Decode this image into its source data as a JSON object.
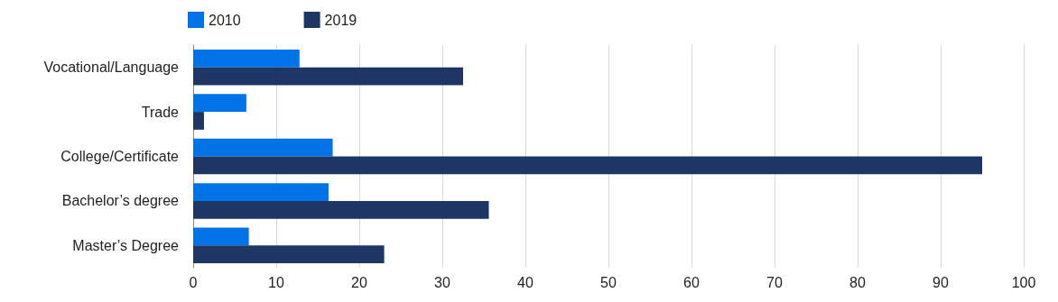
{
  "chart_data": {
    "type": "bar",
    "orientation": "horizontal",
    "categories": [
      "Vocational/Language",
      "Trade",
      "College/Certificate",
      "Bachelor’s degree",
      "Master’s Degree"
    ],
    "series": [
      {
        "name": "2010",
        "color": "#0073e6",
        "values": [
          12.8,
          6.4,
          16.8,
          16.3,
          6.7
        ]
      },
      {
        "name": "2019",
        "color": "#1d3663",
        "values": [
          32.5,
          1.3,
          95.0,
          35.6,
          23.0
        ]
      }
    ],
    "xlim": [
      0,
      100
    ],
    "xticks": [
      0,
      10,
      20,
      30,
      40,
      50,
      60,
      70,
      80,
      90,
      100
    ],
    "grid": "x",
    "legend": "top left"
  }
}
